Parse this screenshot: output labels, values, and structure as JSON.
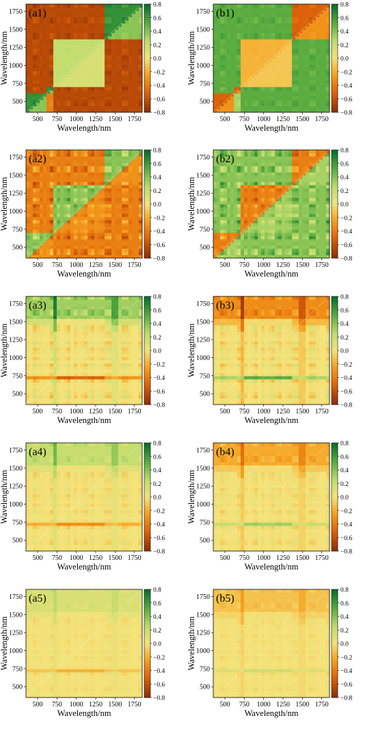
{
  "chart_data": {
    "type": "heatmap",
    "layout": {
      "rows": 5,
      "columns": 2
    },
    "xlabel": "Wavelength/nm",
    "ylabel": "Wavelength/nm",
    "xlim": [
      350,
      1850
    ],
    "ylim": [
      350,
      1850
    ],
    "x_ticks": [
      500,
      750,
      1000,
      1250,
      1500,
      1750
    ],
    "y_ticks": [
      500,
      750,
      1000,
      1250,
      1500,
      1750
    ],
    "colorbar": {
      "range": [
        -0.8,
        0.8
      ],
      "ticks": [
        "0.8",
        "0.6",
        "0.4",
        "0.2",
        "0.0",
        "−0.2",
        "−0.4",
        "−0.6",
        "−0.8"
      ],
      "colors": {
        "negative": "#8c2d04",
        "mid_negative": "#f28a0c",
        "zero": "#f5e27a",
        "mid_positive": "#6bbd45",
        "positive": "#006d2c"
      }
    },
    "panels": [
      {
        "label": "(a1)",
        "boundaries": [
          720,
          1370,
          1450
        ],
        "amplitude": 0.75,
        "pattern": "block",
        "diag_split": true
      },
      {
        "label": "(b1)",
        "boundaries": [
          720,
          1370,
          1450
        ],
        "amplitude": 0.6,
        "pattern": "block_b",
        "diag_split": true
      },
      {
        "label": "(a2)",
        "boundaries": [
          720,
          1370,
          1450
        ],
        "amplitude": 0.7,
        "pattern": "stripes",
        "diag_split": true
      },
      {
        "label": "(b2)",
        "boundaries": [
          720,
          1370,
          1450
        ],
        "amplitude": 0.7,
        "pattern": "stripes_b",
        "diag_split": true
      },
      {
        "label": "(a3)",
        "boundaries": [
          720,
          1370,
          1450
        ],
        "amplitude": 0.55,
        "pattern": "grid",
        "diag_split": false
      },
      {
        "label": "(b3)",
        "boundaries": [
          720,
          1370,
          1450
        ],
        "amplitude": 0.55,
        "pattern": "grid_b",
        "diag_split": false
      },
      {
        "label": "(a4)",
        "boundaries": [
          720,
          1370,
          1450
        ],
        "amplitude": 0.35,
        "pattern": "grid",
        "diag_split": false
      },
      {
        "label": "(b4)",
        "boundaries": [
          720,
          1370,
          1450
        ],
        "amplitude": 0.35,
        "pattern": "grid_b",
        "diag_split": false
      },
      {
        "label": "(a5)",
        "boundaries": [
          720,
          1370,
          1450
        ],
        "amplitude": 0.2,
        "pattern": "grid",
        "diag_split": false
      },
      {
        "label": "(b5)",
        "boundaries": [
          720,
          1370,
          1450
        ],
        "amplitude": 0.2,
        "pattern": "grid_b",
        "diag_split": false
      }
    ]
  }
}
